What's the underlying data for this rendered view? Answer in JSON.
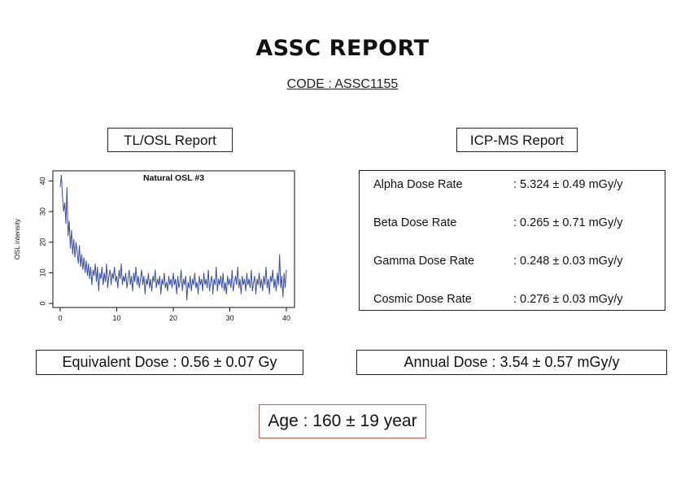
{
  "report": {
    "title": "ASSC REPORT",
    "code": "CODE : ASSC1155"
  },
  "tl_osl": {
    "label": "TL/OSL Report"
  },
  "icp_ms": {
    "label": "ICP-MS Report",
    "rates": [
      {
        "name": "Alpha Dose Rate",
        "value": ": 5.324 ± 0.49 mGy/y"
      },
      {
        "name": "Beta Dose Rate",
        "value": ": 0.265 ± 0.71 mGy/y"
      },
      {
        "name": "Gamma Dose Rate",
        "value": ": 0.248 ± 0.03 mGy/y"
      },
      {
        "name": "Cosmic Dose Rate",
        "value": ": 0.276 ± 0.03 mGy/y"
      }
    ]
  },
  "results": {
    "equivalent_dose": "Equivalent Dose : 0.56 ± 0.07 Gy",
    "annual_dose": "Annual Dose : 3.54 ± 0.57 mGy/y",
    "age": "Age : 160 ± 19 year",
    "age_border_color": "#d9534f"
  },
  "chart_data": {
    "type": "line",
    "title": "Natural OSL #3",
    "xlabel": "",
    "ylabel": "OSL intensity",
    "xlim": [
      0,
      40
    ],
    "ylim": [
      0,
      42
    ],
    "xticks": [
      "0",
      "10",
      "20",
      "30",
      "40"
    ],
    "yticks": [
      "0",
      "10",
      "20",
      "30",
      "40"
    ],
    "line_color": "#3a4fa0",
    "series": [
      {
        "values": [
          [
            0.0,
            38
          ],
          [
            0.2,
            42
          ],
          [
            0.4,
            35
          ],
          [
            0.6,
            30
          ],
          [
            0.8,
            33
          ],
          [
            1.0,
            26
          ],
          [
            1.2,
            38
          ],
          [
            1.4,
            22
          ],
          [
            1.6,
            27
          ],
          [
            1.8,
            18
          ],
          [
            2.0,
            24
          ],
          [
            2.2,
            16
          ],
          [
            2.4,
            21
          ],
          [
            2.6,
            15
          ],
          [
            2.8,
            20
          ],
          [
            3.0,
            17
          ],
          [
            3.2,
            13
          ],
          [
            3.4,
            19
          ],
          [
            3.6,
            12
          ],
          [
            3.8,
            16
          ],
          [
            4.0,
            11
          ],
          [
            4.2,
            15
          ],
          [
            4.4,
            10
          ],
          [
            4.6,
            14
          ],
          [
            4.8,
            9
          ],
          [
            5.0,
            13
          ],
          [
            5.2,
            8
          ],
          [
            5.4,
            12
          ],
          [
            5.6,
            6
          ],
          [
            5.8,
            11
          ],
          [
            6.0,
            9
          ],
          [
            6.2,
            13
          ],
          [
            6.4,
            7
          ],
          [
            6.6,
            12
          ],
          [
            6.8,
            4
          ],
          [
            7.0,
            10
          ],
          [
            7.2,
            8
          ],
          [
            7.4,
            12
          ],
          [
            7.6,
            6
          ],
          [
            7.8,
            10
          ],
          [
            8.0,
            7
          ],
          [
            8.2,
            13
          ],
          [
            8.4,
            5
          ],
          [
            8.6,
            9
          ],
          [
            8.8,
            11
          ],
          [
            9.0,
            6
          ],
          [
            9.2,
            10
          ],
          [
            9.4,
            8
          ],
          [
            9.6,
            12
          ],
          [
            9.8,
            7
          ],
          [
            10.0,
            9
          ],
          [
            10.2,
            5
          ],
          [
            10.4,
            11
          ],
          [
            10.6,
            8
          ],
          [
            10.8,
            13
          ],
          [
            11.0,
            6
          ],
          [
            11.2,
            9
          ],
          [
            11.4,
            7
          ],
          [
            11.6,
            10
          ],
          [
            11.8,
            5
          ],
          [
            12.0,
            8
          ],
          [
            12.2,
            11
          ],
          [
            12.4,
            6
          ],
          [
            12.6,
            9
          ],
          [
            12.8,
            4
          ],
          [
            13.0,
            10
          ],
          [
            13.2,
            7
          ],
          [
            13.4,
            12
          ],
          [
            13.6,
            6
          ],
          [
            13.8,
            9
          ],
          [
            14.0,
            5
          ],
          [
            14.2,
            8
          ],
          [
            14.4,
            11
          ],
          [
            14.6,
            6
          ],
          [
            14.8,
            9
          ],
          [
            15.0,
            3
          ],
          [
            15.2,
            8
          ],
          [
            15.4,
            6
          ],
          [
            15.6,
            10
          ],
          [
            15.8,
            5
          ],
          [
            16.0,
            8
          ],
          [
            16.2,
            4
          ],
          [
            16.4,
            9
          ],
          [
            16.6,
            7
          ],
          [
            16.8,
            11
          ],
          [
            17.0,
            5
          ],
          [
            17.2,
            8
          ],
          [
            17.4,
            6
          ],
          [
            17.6,
            9
          ],
          [
            17.8,
            3
          ],
          [
            18.0,
            8
          ],
          [
            18.2,
            6
          ],
          [
            18.4,
            10
          ],
          [
            18.6,
            5
          ],
          [
            18.8,
            7
          ],
          [
            19.0,
            4
          ],
          [
            19.2,
            9
          ],
          [
            19.4,
            6
          ],
          [
            19.6,
            8
          ],
          [
            19.8,
            5
          ],
          [
            20.0,
            10
          ],
          [
            20.2,
            6
          ],
          [
            20.4,
            8
          ],
          [
            20.6,
            3
          ],
          [
            20.8,
            9
          ],
          [
            21.0,
            5
          ],
          [
            21.2,
            7
          ],
          [
            21.4,
            11
          ],
          [
            21.6,
            4
          ],
          [
            21.8,
            8
          ],
          [
            22.0,
            6
          ],
          [
            22.2,
            9
          ],
          [
            22.4,
            1
          ],
          [
            22.6,
            7
          ],
          [
            22.8,
            5
          ],
          [
            23.0,
            9
          ],
          [
            23.2,
            4
          ],
          [
            23.4,
            8
          ],
          [
            23.6,
            6
          ],
          [
            23.8,
            10
          ],
          [
            24.0,
            5
          ],
          [
            24.2,
            7
          ],
          [
            24.4,
            3
          ],
          [
            24.6,
            9
          ],
          [
            24.8,
            6
          ],
          [
            25.0,
            8
          ],
          [
            25.2,
            4
          ],
          [
            25.4,
            10
          ],
          [
            25.6,
            6
          ],
          [
            25.8,
            8
          ],
          [
            26.0,
            5
          ],
          [
            26.2,
            11
          ],
          [
            26.4,
            4
          ],
          [
            26.6,
            7
          ],
          [
            26.8,
            9
          ],
          [
            27.0,
            3
          ],
          [
            27.2,
            8
          ],
          [
            27.4,
            6
          ],
          [
            27.6,
            12
          ],
          [
            27.8,
            4
          ],
          [
            28.0,
            8
          ],
          [
            28.2,
            6
          ],
          [
            28.4,
            9
          ],
          [
            28.6,
            5
          ],
          [
            28.8,
            10
          ],
          [
            29.0,
            4
          ],
          [
            29.2,
            7
          ],
          [
            29.4,
            3
          ],
          [
            29.6,
            9
          ],
          [
            29.8,
            6
          ],
          [
            30.0,
            8
          ],
          [
            30.2,
            5
          ],
          [
            30.4,
            11
          ],
          [
            30.6,
            4
          ],
          [
            30.8,
            7
          ],
          [
            31.0,
            9
          ],
          [
            31.2,
            6
          ],
          [
            31.4,
            12
          ],
          [
            31.6,
            5
          ],
          [
            31.8,
            8
          ],
          [
            32.0,
            3
          ],
          [
            32.2,
            9
          ],
          [
            32.4,
            6
          ],
          [
            32.6,
            8
          ],
          [
            32.8,
            4
          ],
          [
            33.0,
            10
          ],
          [
            33.2,
            6
          ],
          [
            33.4,
            8
          ],
          [
            33.6,
            5
          ],
          [
            33.8,
            11
          ],
          [
            34.0,
            4
          ],
          [
            34.2,
            7
          ],
          [
            34.4,
            9
          ],
          [
            34.6,
            3
          ],
          [
            34.8,
            8
          ],
          [
            35.0,
            6
          ],
          [
            35.2,
            10
          ],
          [
            35.4,
            5
          ],
          [
            35.6,
            8
          ],
          [
            35.8,
            4
          ],
          [
            36.0,
            9
          ],
          [
            36.2,
            6
          ],
          [
            36.4,
            12
          ],
          [
            36.6,
            5
          ],
          [
            36.8,
            8
          ],
          [
            37.0,
            3
          ],
          [
            37.2,
            9
          ],
          [
            37.4,
            7
          ],
          [
            37.6,
            11
          ],
          [
            37.8,
            5
          ],
          [
            38.0,
            8
          ],
          [
            38.2,
            4
          ],
          [
            38.4,
            10
          ],
          [
            38.6,
            6
          ],
          [
            38.8,
            16
          ],
          [
            39.0,
            5
          ],
          [
            39.2,
            9
          ],
          [
            39.4,
            2
          ],
          [
            39.6,
            10
          ],
          [
            39.8,
            5
          ],
          [
            40.0,
            11
          ]
        ]
      }
    ]
  }
}
